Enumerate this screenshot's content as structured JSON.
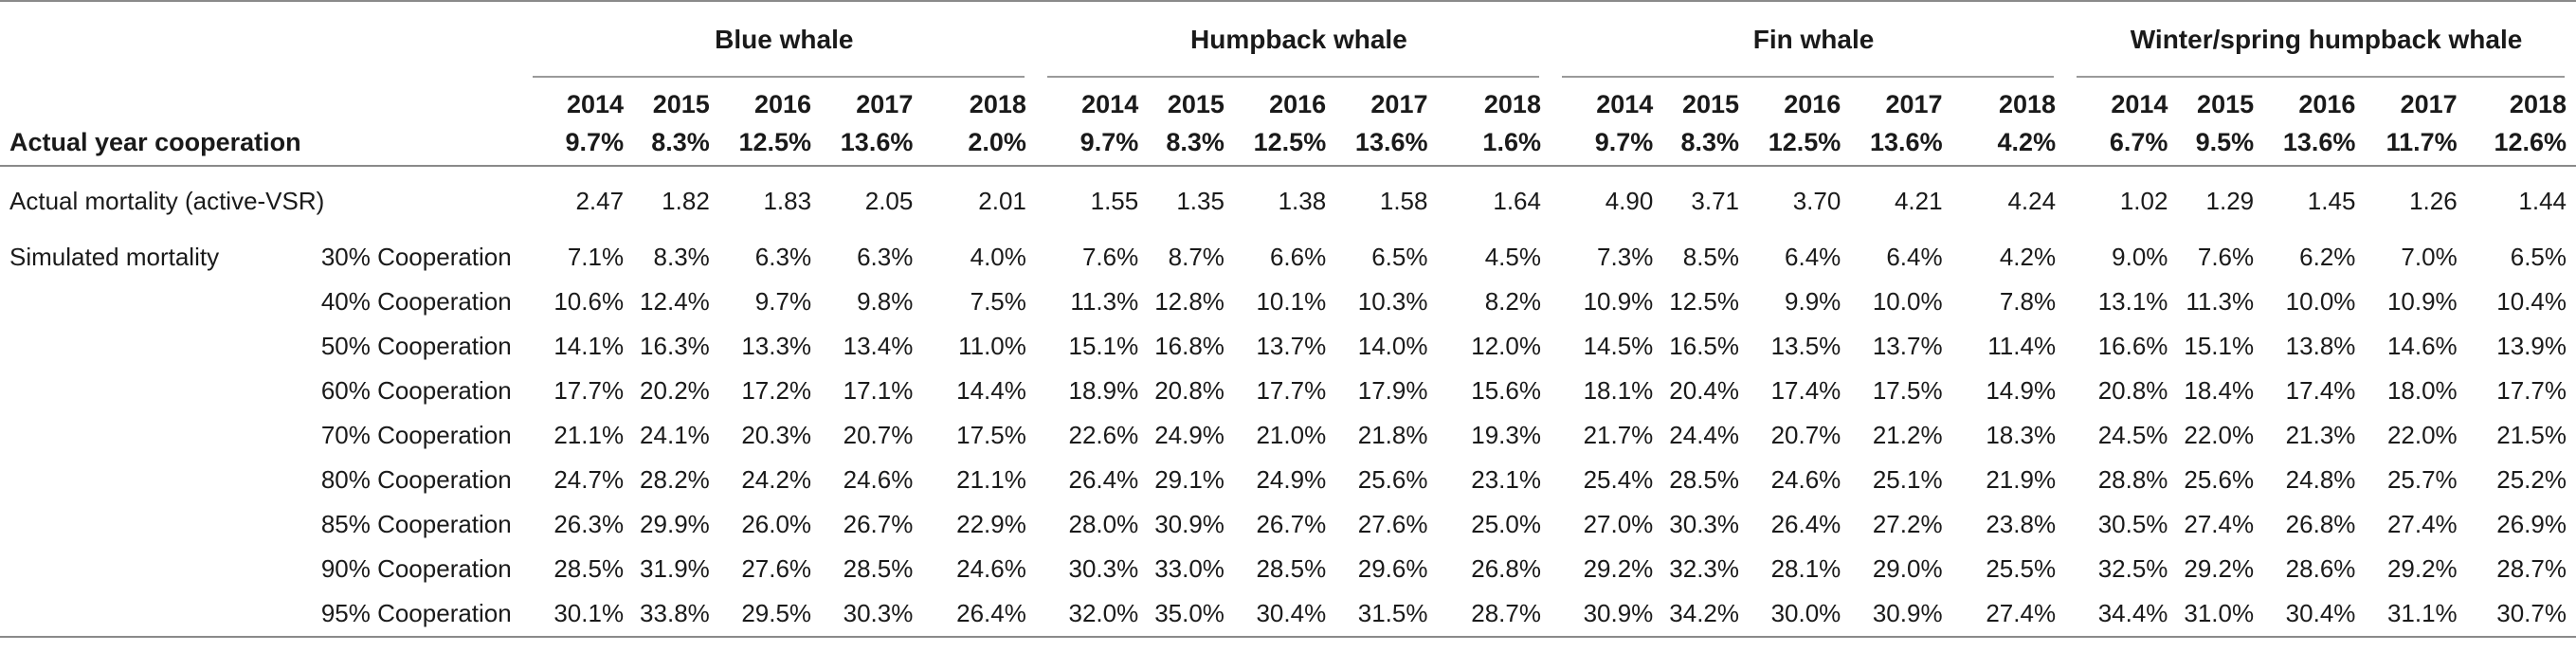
{
  "table": {
    "stub_header": "Actual year cooperation",
    "species": [
      {
        "name": "Blue whale",
        "years": [
          "2014",
          "2015",
          "2016",
          "2017",
          "2018"
        ],
        "cooperation": [
          "9.7%",
          "8.3%",
          "12.5%",
          "13.6%",
          "2.0%"
        ]
      },
      {
        "name": "Humpback whale",
        "years": [
          "2014",
          "2015",
          "2016",
          "2017",
          "2018"
        ],
        "cooperation": [
          "9.7%",
          "8.3%",
          "12.5%",
          "13.6%",
          "1.6%"
        ]
      },
      {
        "name": "Fin whale",
        "years": [
          "2014",
          "2015",
          "2016",
          "2017",
          "2018"
        ],
        "cooperation": [
          "9.7%",
          "8.3%",
          "12.5%",
          "13.6%",
          "4.2%"
        ]
      },
      {
        "name": "Winter/spring humpback whale",
        "years": [
          "2014",
          "2015",
          "2016",
          "2017",
          "2018"
        ],
        "cooperation": [
          "6.7%",
          "9.5%",
          "13.6%",
          "11.7%",
          "12.6%"
        ]
      }
    ],
    "actual_mortality": {
      "label": "Actual mortality (active-VSR)",
      "values": [
        "2.47",
        "1.82",
        "1.83",
        "2.05",
        "2.01",
        "1.55",
        "1.35",
        "1.38",
        "1.58",
        "1.64",
        "4.90",
        "3.71",
        "3.70",
        "4.21",
        "4.24",
        "1.02",
        "1.29",
        "1.45",
        "1.26",
        "1.44"
      ]
    },
    "simulated_label": "Simulated mortality",
    "simulated_rows": [
      {
        "label": "30% Cooperation",
        "values": [
          "7.1%",
          "8.3%",
          "6.3%",
          "6.3%",
          "4.0%",
          "7.6%",
          "8.7%",
          "6.6%",
          "6.5%",
          "4.5%",
          "7.3%",
          "8.5%",
          "6.4%",
          "6.4%",
          "4.2%",
          "9.0%",
          "7.6%",
          "6.2%",
          "7.0%",
          "6.5%"
        ]
      },
      {
        "label": "40% Cooperation",
        "values": [
          "10.6%",
          "12.4%",
          "9.7%",
          "9.8%",
          "7.5%",
          "11.3%",
          "12.8%",
          "10.1%",
          "10.3%",
          "8.2%",
          "10.9%",
          "12.5%",
          "9.9%",
          "10.0%",
          "7.8%",
          "13.1%",
          "11.3%",
          "10.0%",
          "10.9%",
          "10.4%"
        ]
      },
      {
        "label": "50% Cooperation",
        "values": [
          "14.1%",
          "16.3%",
          "13.3%",
          "13.4%",
          "11.0%",
          "15.1%",
          "16.8%",
          "13.7%",
          "14.0%",
          "12.0%",
          "14.5%",
          "16.5%",
          "13.5%",
          "13.7%",
          "11.4%",
          "16.6%",
          "15.1%",
          "13.8%",
          "14.6%",
          "13.9%"
        ]
      },
      {
        "label": "60% Cooperation",
        "values": [
          "17.7%",
          "20.2%",
          "17.2%",
          "17.1%",
          "14.4%",
          "18.9%",
          "20.8%",
          "17.7%",
          "17.9%",
          "15.6%",
          "18.1%",
          "20.4%",
          "17.4%",
          "17.5%",
          "14.9%",
          "20.8%",
          "18.4%",
          "17.4%",
          "18.0%",
          "17.7%"
        ]
      },
      {
        "label": "70% Cooperation",
        "values": [
          "21.1%",
          "24.1%",
          "20.3%",
          "20.7%",
          "17.5%",
          "22.6%",
          "24.9%",
          "21.0%",
          "21.8%",
          "19.3%",
          "21.7%",
          "24.4%",
          "20.7%",
          "21.2%",
          "18.3%",
          "24.5%",
          "22.0%",
          "21.3%",
          "22.0%",
          "21.5%"
        ]
      },
      {
        "label": "80% Cooperation",
        "values": [
          "24.7%",
          "28.2%",
          "24.2%",
          "24.6%",
          "21.1%",
          "26.4%",
          "29.1%",
          "24.9%",
          "25.6%",
          "23.1%",
          "25.4%",
          "28.5%",
          "24.6%",
          "25.1%",
          "21.9%",
          "28.8%",
          "25.6%",
          "24.8%",
          "25.7%",
          "25.2%"
        ]
      },
      {
        "label": "85% Cooperation",
        "values": [
          "26.3%",
          "29.9%",
          "26.0%",
          "26.7%",
          "22.9%",
          "28.0%",
          "30.9%",
          "26.7%",
          "27.6%",
          "25.0%",
          "27.0%",
          "30.3%",
          "26.4%",
          "27.2%",
          "23.8%",
          "30.5%",
          "27.4%",
          "26.8%",
          "27.4%",
          "26.9%"
        ]
      },
      {
        "label": "90% Cooperation",
        "values": [
          "28.5%",
          "31.9%",
          "27.6%",
          "28.5%",
          "24.6%",
          "30.3%",
          "33.0%",
          "28.5%",
          "29.6%",
          "26.8%",
          "29.2%",
          "32.3%",
          "28.1%",
          "29.0%",
          "25.5%",
          "32.5%",
          "29.2%",
          "28.6%",
          "29.2%",
          "28.7%"
        ]
      },
      {
        "label": "95% Cooperation",
        "values": [
          "30.1%",
          "33.8%",
          "29.5%",
          "30.3%",
          "26.4%",
          "32.0%",
          "35.0%",
          "30.4%",
          "31.5%",
          "28.7%",
          "30.9%",
          "34.2%",
          "30.0%",
          "30.9%",
          "27.4%",
          "34.4%",
          "31.0%",
          "30.4%",
          "31.1%",
          "30.7%"
        ]
      }
    ]
  }
}
